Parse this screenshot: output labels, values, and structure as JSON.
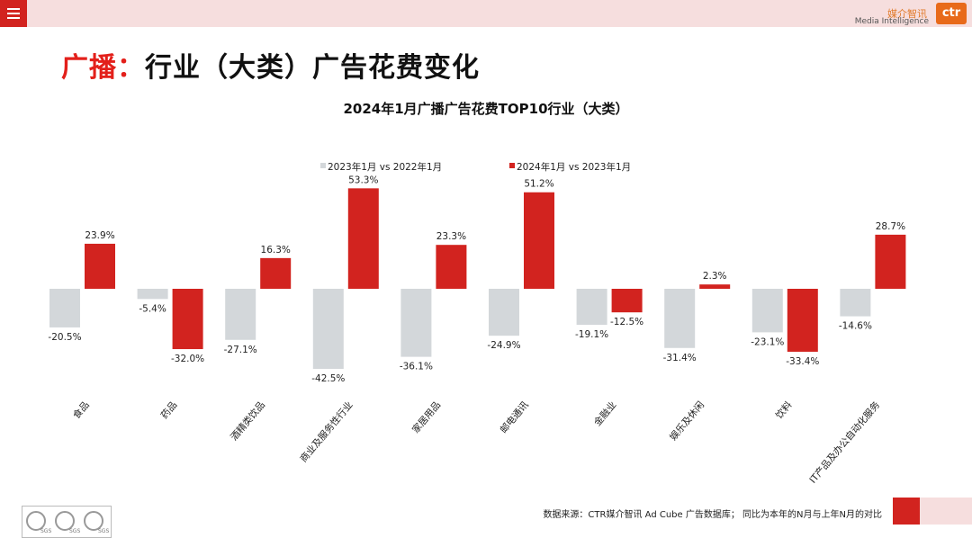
{
  "header": {
    "logo_cn": "媒介智讯",
    "logo_en": "Media Intelligence",
    "logo_mark": "ctr"
  },
  "page": {
    "title_prefix": "广播：",
    "title_rest": "行业（大类）广告花费变化"
  },
  "footer": {
    "source_note": "数据来源：CTR媒介智讯 Ad Cube 广告数据库； 同比为本年的N月与上年N月的对比",
    "cert_label": "SGS"
  },
  "colors": {
    "series_2023": "#d3d7da",
    "series_2024": "#d2231f",
    "title_accent": "#e3201b"
  },
  "chart_data": {
    "type": "bar",
    "title": "2024年1月广播广告花费TOP10行业（大类）",
    "legend_position": "top-center",
    "categories": [
      "食品",
      "药品",
      "酒精类饮品",
      "商业及服务性行业",
      "家居用品",
      "邮电通讯",
      "金融业",
      "娱乐及休闲",
      "饮料",
      "IT产品及办公自动化服务"
    ],
    "series": [
      {
        "name": "2023年1月  vs  2022年1月",
        "values": [
          -20.5,
          -5.4,
          -27.1,
          -42.5,
          -36.1,
          -24.9,
          -19.1,
          -31.4,
          -23.1,
          -14.6
        ],
        "labels": [
          "-20.5%",
          "-5.4%",
          "-27.1%",
          "-42.5%",
          "-36.1%",
          "-24.9%",
          "-19.1%",
          "-31.4%",
          "-23.1%",
          "-14.6%"
        ]
      },
      {
        "name": "2024年1月  vs  2023年1月",
        "values": [
          23.9,
          -32.0,
          16.3,
          53.3,
          23.3,
          51.2,
          -12.5,
          2.3,
          -33.4,
          28.7
        ],
        "labels": [
          "23.9%",
          "-32.0%",
          "16.3%",
          "53.3%",
          "23.3%",
          "51.2%",
          "-12.5%",
          "2.3%",
          "-33.4%",
          "28.7%"
        ]
      }
    ],
    "unit": "%"
  }
}
